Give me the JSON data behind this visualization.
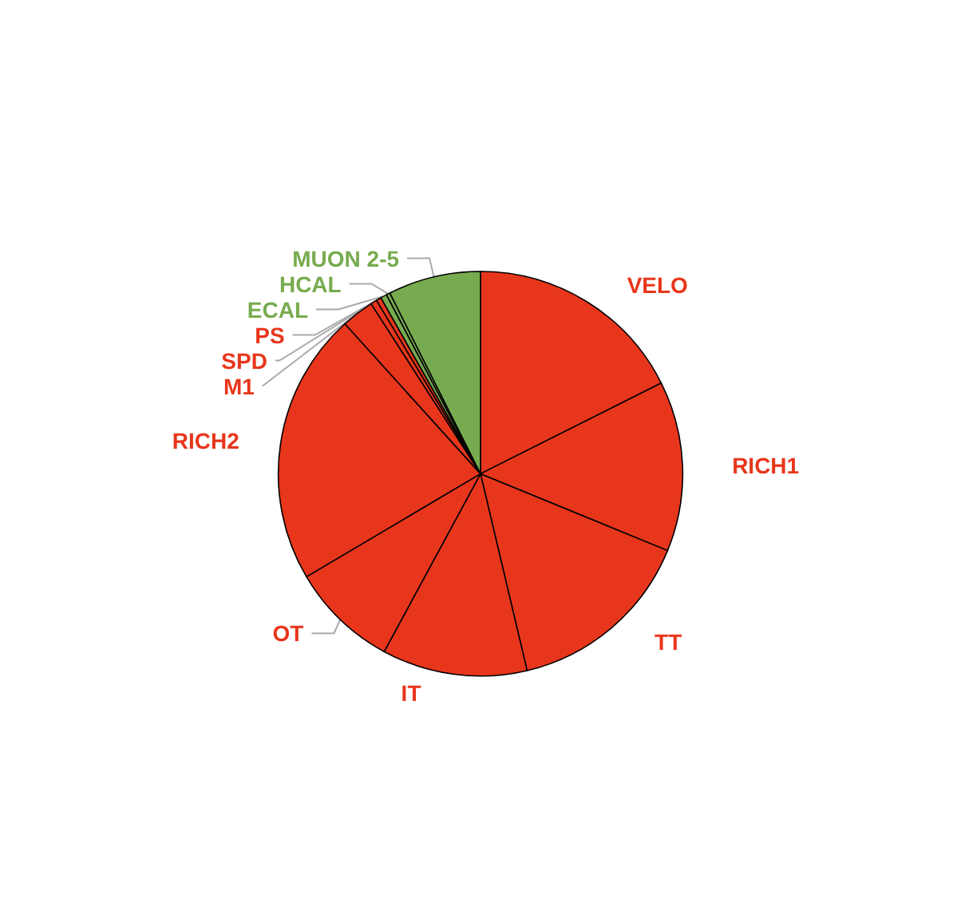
{
  "chart_data": {
    "type": "pie",
    "relative": false,
    "categories": [
      "VELO",
      "RICH1",
      "TT",
      "IT",
      "OT",
      "RICH2",
      "M1",
      "SPD",
      "PS",
      "ECAL",
      "HCAL",
      "MUON 2-5"
    ],
    "values": [
      17.6,
      13.6,
      15.1,
      11.6,
      8.6,
      21.8,
      2.6,
      0.5,
      0.4,
      0.5,
      0.3,
      7.4
    ],
    "colors": [
      "#e8361c",
      "#e8361c",
      "#e8361c",
      "#e8361c",
      "#e8361c",
      "#e8361c",
      "#e8361c",
      "#e8361c",
      "#e8361c",
      "#77ab4f",
      "#77ab4f",
      "#77ab4f"
    ],
    "legend": false
  }
}
